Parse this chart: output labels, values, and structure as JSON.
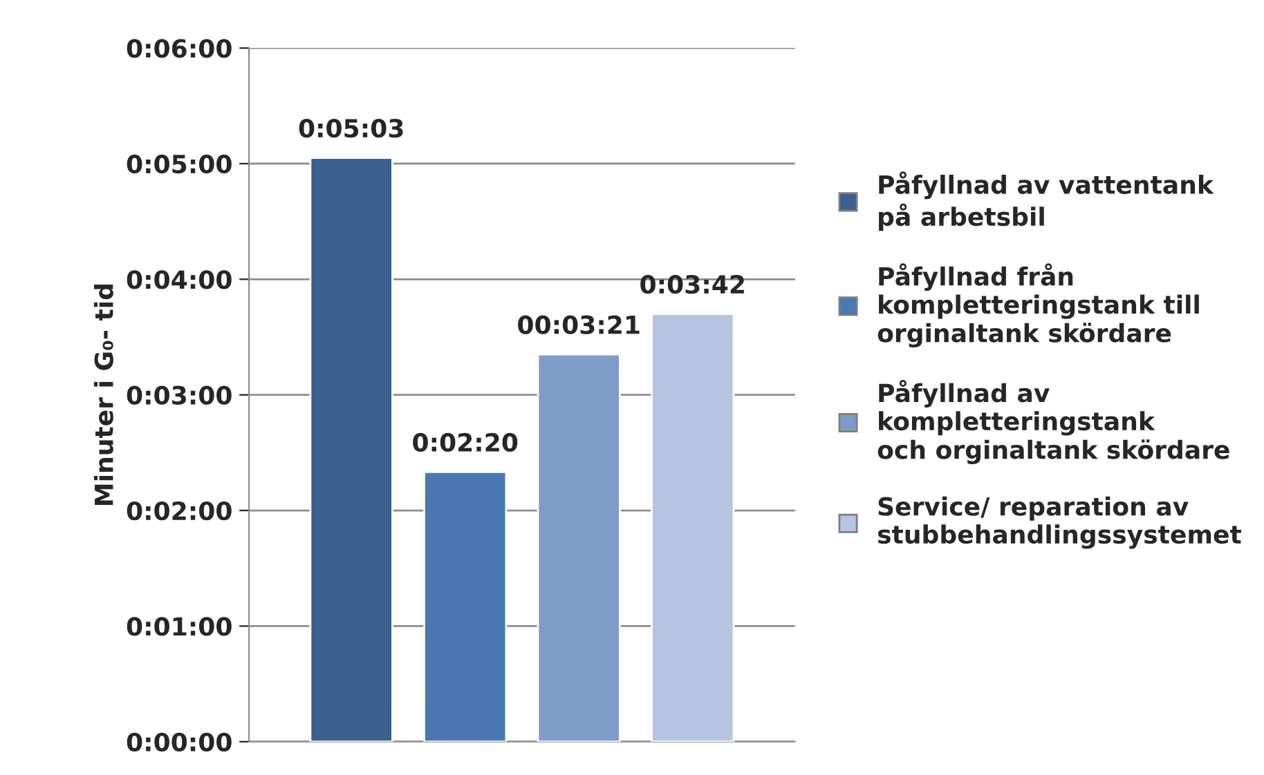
{
  "chart_data": {
    "type": "bar",
    "ylabel": "Minuter i G₀- tid",
    "categories": [
      null,
      null,
      null,
      null
    ],
    "series": [
      {
        "name": "Påfyllnad av vattentank\npå arbetsbil",
        "color": "#3b5f8e",
        "values": [
          5.05,
          null,
          null,
          null
        ],
        "value_labels": [
          "0:05:03",
          null,
          null,
          null
        ]
      },
      {
        "name": "Påfyllnad från\nkompletteringstank till\norginaltank skördare",
        "color": "#4a78b2",
        "values": [
          null,
          2.333,
          null,
          null
        ],
        "value_labels": [
          null,
          "0:02:20",
          null,
          null
        ]
      },
      {
        "name": "Påfyllnad av\nkompletteringstank\noch orginaltank skördare",
        "color": "#7f9cc8",
        "values": [
          null,
          null,
          3.35,
          null
        ],
        "value_labels": [
          null,
          null,
          "00:03:21",
          null
        ]
      },
      {
        "name": "Service/ reparation av\nstubbehandlingssystemet",
        "color": "#b5c5df",
        "values": [
          null,
          null,
          null,
          3.7
        ],
        "value_labels": [
          null,
          null,
          null,
          "0:03:42"
        ]
      }
    ],
    "ylim": [
      0,
      6
    ],
    "yticks": [
      {
        "value": 0,
        "label": "0:00:00"
      },
      {
        "value": 1,
        "label": "0:01:00"
      },
      {
        "value": 2,
        "label": "0:02:00"
      },
      {
        "value": 3,
        "label": "0:03:00"
      },
      {
        "value": 4,
        "label": "0:04:00"
      },
      {
        "value": 5,
        "label": "0:05:00"
      },
      {
        "value": 6,
        "label": "0:06:00"
      }
    ],
    "grid": "y",
    "legend": "right"
  }
}
